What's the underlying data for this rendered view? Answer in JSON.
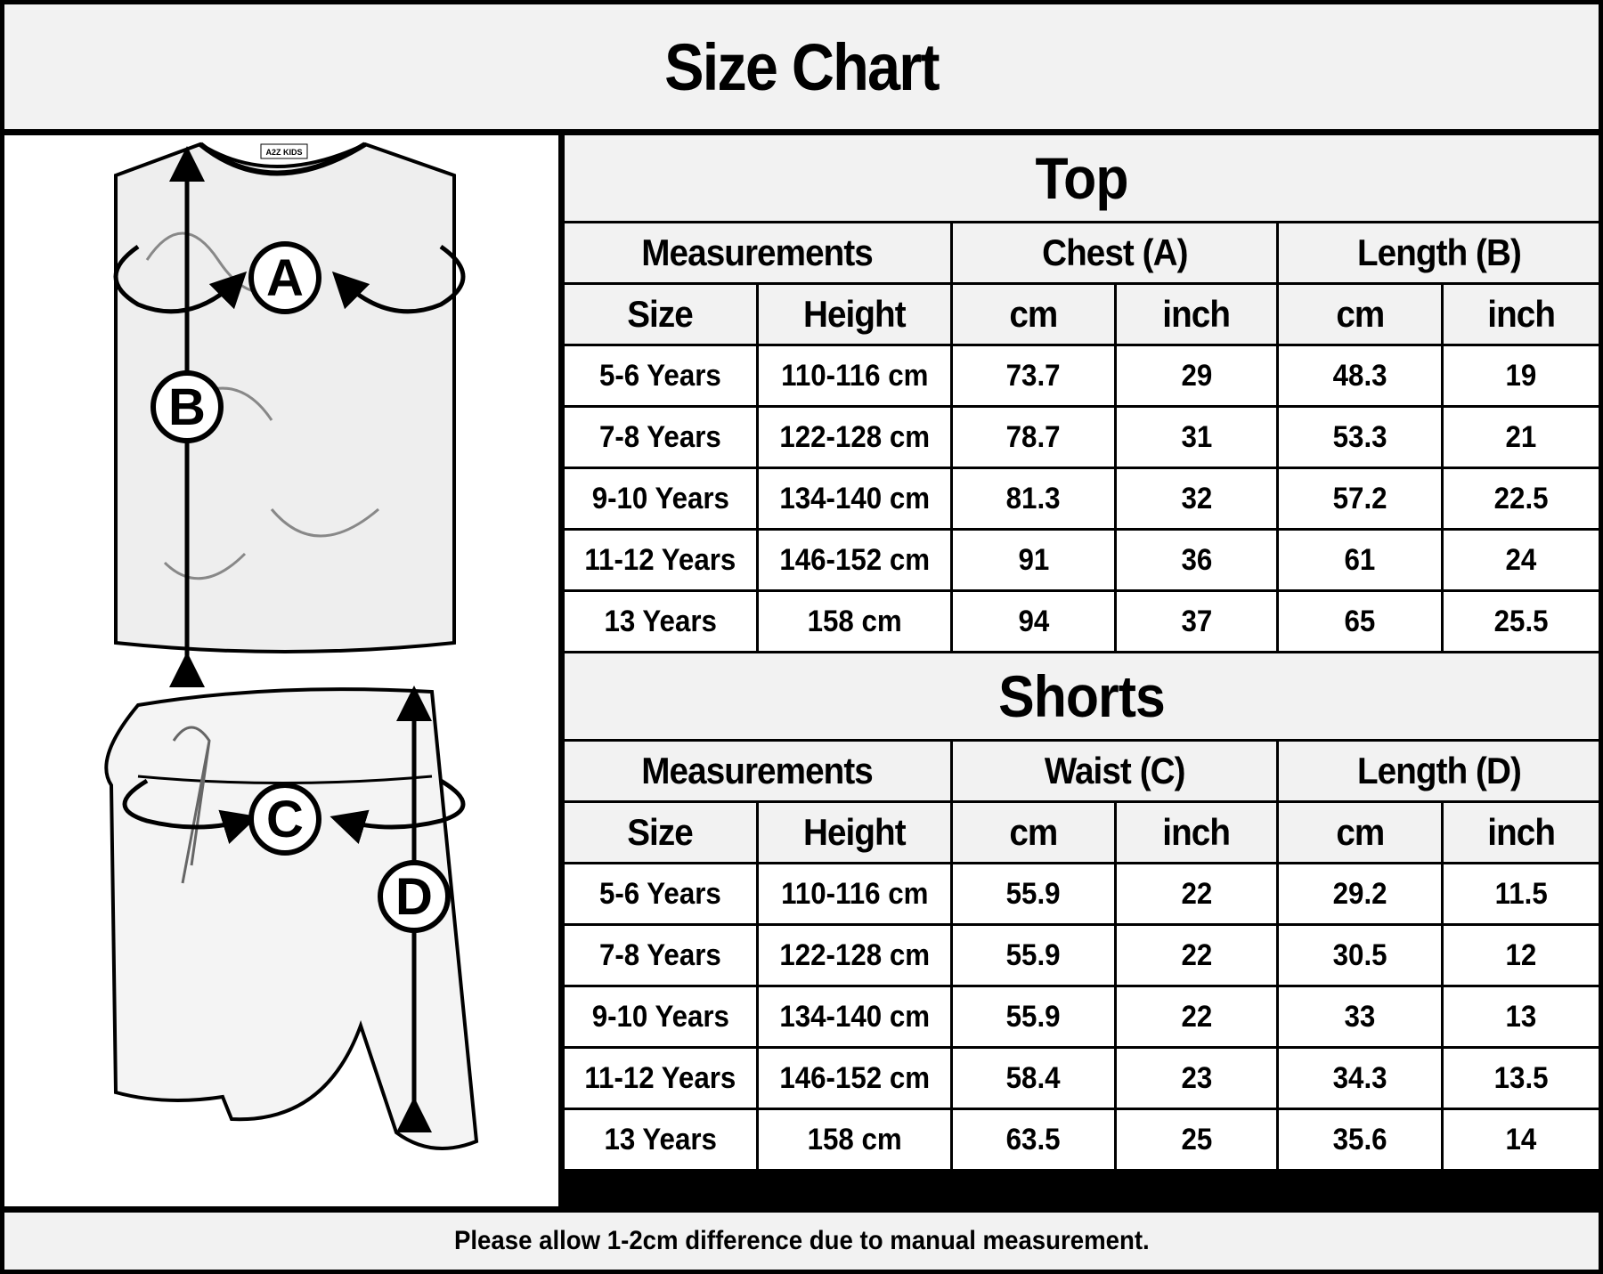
{
  "title": "Size Chart",
  "illustration": {
    "labels": [
      "A",
      "B",
      "C",
      "D"
    ],
    "brand_tag": "A2Z KIDS"
  },
  "top": {
    "title": "Top",
    "group_headers": [
      "Measurements",
      "Chest (A)",
      "Length (B)"
    ],
    "sub_headers": [
      "Size",
      "Height",
      "cm",
      "inch",
      "cm",
      "inch"
    ],
    "rows": [
      [
        "5-6 Years",
        "110-116 cm",
        "73.7",
        "29",
        "48.3",
        "19"
      ],
      [
        "7-8 Years",
        "122-128 cm",
        "78.7",
        "31",
        "53.3",
        "21"
      ],
      [
        "9-10 Years",
        "134-140 cm",
        "81.3",
        "32",
        "57.2",
        "22.5"
      ],
      [
        "11-12 Years",
        "146-152 cm",
        "91",
        "36",
        "61",
        "24"
      ],
      [
        "13 Years",
        "158 cm",
        "94",
        "37",
        "65",
        "25.5"
      ]
    ]
  },
  "shorts": {
    "title": "Shorts",
    "group_headers": [
      "Measurements",
      "Waist (C)",
      "Length (D)"
    ],
    "sub_headers": [
      "Size",
      "Height",
      "cm",
      "inch",
      "cm",
      "inch"
    ],
    "rows": [
      [
        "5-6 Years",
        "110-116 cm",
        "55.9",
        "22",
        "29.2",
        "11.5"
      ],
      [
        "7-8 Years",
        "122-128 cm",
        "55.9",
        "22",
        "30.5",
        "12"
      ],
      [
        "9-10 Years",
        "134-140 cm",
        "55.9",
        "22",
        "33",
        "13"
      ],
      [
        "11-12 Years",
        "146-152 cm",
        "58.4",
        "23",
        "34.3",
        "13.5"
      ],
      [
        "13 Years",
        "158 cm",
        "63.5",
        "25",
        "35.6",
        "14"
      ]
    ]
  },
  "footer": "Please allow 1-2cm difference due to manual measurement."
}
